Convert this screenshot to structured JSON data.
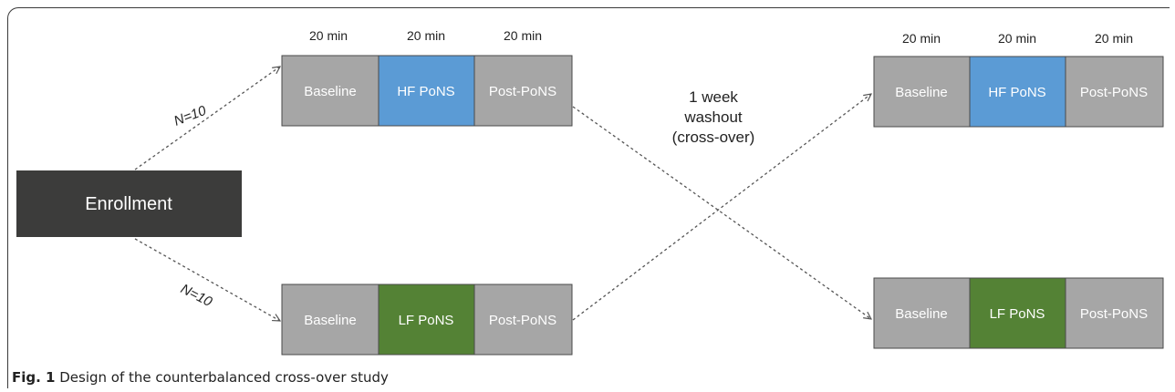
{
  "enrollment_label": "Enrollment",
  "arm_labels": [
    "N=10",
    "N=10"
  ],
  "duration_labels": [
    "20 min",
    "20 min",
    "20 min"
  ],
  "washout_lines": [
    "1 week",
    "washout",
    "(cross-over)"
  ],
  "blocks": {
    "top_left": [
      "Baseline",
      "HF PoNS",
      "Post-PoNS"
    ],
    "top_right": [
      "Baseline",
      "HF PoNS",
      "Post-PoNS"
    ],
    "bottom_left": [
      "Baseline",
      "LF PoNS",
      "Post-PoNS"
    ],
    "bottom_right": [
      "Baseline",
      "LF PoNS",
      "Post-PoNS"
    ]
  },
  "colors": {
    "enrollment": "#3c3c3b",
    "phase_gray": "#a6a6a6",
    "hf": "#5b9bd5",
    "lf": "#548235",
    "border": "#4a4a4a",
    "line": "#555555"
  },
  "caption": {
    "label": "Fig. 1",
    "text": " Design of the counterbalanced cross-over study"
  }
}
